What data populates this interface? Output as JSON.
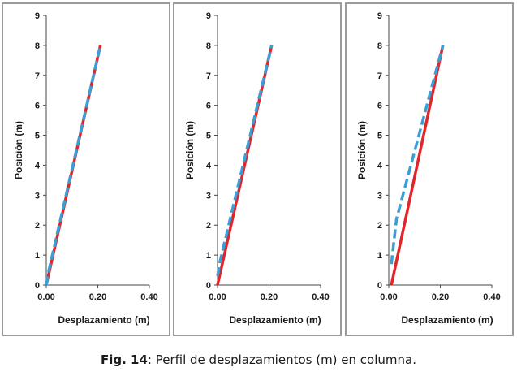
{
  "caption": {
    "label": "Fig. 14",
    "text": ": Perfil de desplazamientos (m) en columna."
  },
  "colors": {
    "series_solid": "#e0262a",
    "series_dashed": "#3a9fd6",
    "panel_border": "#9a9a9a",
    "axis": "#444444"
  },
  "chart_data": [
    {
      "type": "line",
      "xlabel": "Desplazamiento (m)",
      "ylabel": "Posición (m)",
      "xlim": [
        0,
        0.4
      ],
      "ylim": [
        0,
        9
      ],
      "x_ticks": [
        "0.00",
        "0.20",
        "0.40"
      ],
      "y_ticks": [
        "0",
        "1",
        "2",
        "3",
        "4",
        "5",
        "6",
        "7",
        "8",
        "9"
      ],
      "grid": false,
      "series": [
        {
          "style": "solid",
          "color": "#e0262a",
          "x": [
            0.0,
            0.21
          ],
          "y": [
            0,
            8
          ]
        },
        {
          "style": "dashed",
          "color": "#3a9fd6",
          "x": [
            0.0,
            0.01,
            0.21
          ],
          "y": [
            0,
            0.5,
            8
          ]
        }
      ]
    },
    {
      "type": "line",
      "xlabel": "Desplazamiento (m)",
      "ylabel": "Posición (m)",
      "xlim": [
        0,
        0.4
      ],
      "ylim": [
        0,
        9
      ],
      "x_ticks": [
        "0.00",
        "0.20",
        "0.40"
      ],
      "y_ticks": [
        "0",
        "1",
        "2",
        "3",
        "4",
        "5",
        "6",
        "7",
        "8",
        "9"
      ],
      "grid": false,
      "series": [
        {
          "style": "solid",
          "color": "#e0262a",
          "x": [
            0.0,
            0.21
          ],
          "y": [
            0,
            8
          ]
        },
        {
          "style": "dashed",
          "color": "#3a9fd6",
          "x": [
            0.0,
            0.01,
            0.21
          ],
          "y": [
            0.3,
            0.8,
            8
          ]
        }
      ]
    },
    {
      "type": "line",
      "xlabel": "Desplazamiento (m)",
      "ylabel": "Posición (m)",
      "xlim": [
        0,
        0.4
      ],
      "ylim": [
        0,
        9
      ],
      "x_ticks": [
        "0.00",
        "0.20",
        "0.40"
      ],
      "y_ticks": [
        "0",
        "1",
        "2",
        "3",
        "4",
        "5",
        "6",
        "7",
        "8",
        "9"
      ],
      "grid": false,
      "series": [
        {
          "style": "solid",
          "color": "#e0262a",
          "x": [
            0.01,
            0.21
          ],
          "y": [
            0,
            8
          ]
        },
        {
          "style": "dashed",
          "color": "#3a9fd6",
          "x": [
            0.01,
            0.03,
            0.21
          ],
          "y": [
            0.7,
            2.2,
            8
          ]
        }
      ]
    }
  ]
}
